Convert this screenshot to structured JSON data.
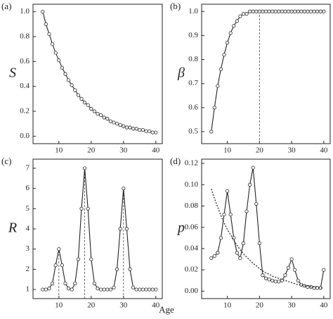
{
  "x_label": "Age",
  "chart_data": [
    {
      "type": "line",
      "panel_label": "(a)",
      "ylabel": "S",
      "x": [
        5,
        6,
        7,
        8,
        9,
        10,
        11,
        12,
        13,
        14,
        15,
        16,
        17,
        18,
        19,
        20,
        21,
        22,
        23,
        24,
        25,
        26,
        27,
        28,
        29,
        30,
        31,
        32,
        33,
        34,
        35,
        36,
        37,
        38,
        39,
        40
      ],
      "series": [
        {
          "color": "#222222",
          "marker": "circle",
          "style": "solid",
          "values": [
            1.0,
            0.9,
            0.82,
            0.74,
            0.67,
            0.61,
            0.55,
            0.5,
            0.45,
            0.41,
            0.37,
            0.33,
            0.3,
            0.27,
            0.25,
            0.22,
            0.2,
            0.18,
            0.17,
            0.15,
            0.14,
            0.12,
            0.11,
            0.1,
            0.09,
            0.08,
            0.07,
            0.07,
            0.06,
            0.06,
            0.05,
            0.05,
            0.04,
            0.04,
            0.03,
            0.03
          ]
        }
      ],
      "xlim": [
        2,
        42
      ],
      "xticks": [
        10,
        20,
        30,
        40
      ],
      "ylim": [
        -0.06,
        1.06
      ],
      "yticks": [
        {
          "value": 0,
          "label": "0.0"
        },
        0.2,
        0.4,
        0.6,
        0.8,
        {
          "value": 1,
          "label": "1.0"
        }
      ],
      "vlines": []
    },
    {
      "type": "line",
      "panel_label": "(b)",
      "ylabel": "β",
      "x": [
        5,
        6,
        7,
        8,
        9,
        10,
        11,
        12,
        13,
        14,
        15,
        16,
        17,
        18,
        19,
        20,
        21,
        22,
        23,
        24,
        25,
        26,
        27,
        28,
        29,
        30,
        31,
        32,
        33,
        34,
        35,
        36,
        37,
        38,
        39,
        40
      ],
      "series": [
        {
          "color": "#222222",
          "marker": "circle",
          "style": "solid",
          "values": [
            0.5,
            0.6,
            0.69,
            0.76,
            0.82,
            0.87,
            0.91,
            0.94,
            0.96,
            0.98,
            0.99,
            0.99,
            1.0,
            1.0,
            1.0,
            1.0,
            1.0,
            1.0,
            1.0,
            1.0,
            1.0,
            1.0,
            1.0,
            1.0,
            1.0,
            1.0,
            1.0,
            1.0,
            1.0,
            1.0,
            1.0,
            1.0,
            1.0,
            1.0,
            1.0,
            1.0
          ]
        }
      ],
      "xlim": [
        2,
        42
      ],
      "xticks": [
        10,
        20,
        30,
        40
      ],
      "ylim": [
        0.45,
        1.03
      ],
      "yticks": [
        0.5,
        0.6,
        0.7,
        0.8,
        0.9,
        {
          "value": 1,
          "label": "1.0"
        }
      ],
      "vlines": [
        20
      ]
    },
    {
      "type": "line",
      "panel_label": "(c)",
      "ylabel": "R",
      "x": [
        5,
        6,
        7,
        8,
        9,
        10,
        11,
        12,
        13,
        14,
        15,
        16,
        17,
        18,
        19,
        20,
        21,
        22,
        23,
        24,
        25,
        26,
        27,
        28,
        29,
        30,
        31,
        32,
        33,
        34,
        35,
        36,
        37,
        38,
        39,
        40
      ],
      "series": [
        {
          "color": "#222222",
          "marker": "circle",
          "style": "solid",
          "values": [
            1,
            1,
            1.05,
            1.3,
            2.2,
            3,
            2.2,
            1.3,
            1.05,
            1,
            1.3,
            2.5,
            5,
            7,
            5,
            2.5,
            1.3,
            1.05,
            1,
            1,
            1,
            1,
            1.1,
            2,
            4,
            6,
            4,
            2,
            1.1,
            1,
            1,
            1,
            1,
            1,
            1,
            1
          ]
        }
      ],
      "xlim": [
        2,
        42
      ],
      "xticks": [
        10,
        20,
        30,
        40
      ],
      "ylim": [
        0.55,
        7.45
      ],
      "yticks": [
        1,
        2,
        3,
        4,
        5,
        6,
        7
      ],
      "vlines": [
        10,
        18,
        30
      ]
    },
    {
      "type": "line",
      "panel_label": "(d)",
      "ylabel": "p",
      "x": [
        5,
        6,
        7,
        8,
        9,
        10,
        11,
        12,
        13,
        14,
        15,
        16,
        17,
        18,
        19,
        20,
        21,
        22,
        23,
        24,
        25,
        26,
        27,
        28,
        29,
        30,
        31,
        32,
        33,
        34,
        35,
        36,
        37,
        38,
        39,
        40
      ],
      "series": [
        {
          "color": "#222222",
          "marker": "circle",
          "style": "solid",
          "values": [
            0.031,
            0.033,
            0.036,
            0.05,
            0.072,
            0.094,
            0.072,
            0.05,
            0.036,
            0.031,
            0.045,
            0.075,
            0.1,
            0.116,
            0.082,
            0.045,
            0.015,
            0.012,
            0.011,
            0.01,
            0.009,
            0.009,
            0.01,
            0.015,
            0.022,
            0.03,
            0.02,
            0.01,
            0.006,
            0.005,
            0.004,
            0.004,
            0.003,
            0.003,
            0.003,
            0.02
          ]
        },
        {
          "color": "#222222",
          "marker": "none",
          "style": "dotted",
          "values": [
            0.096,
            0.087,
            0.079,
            0.071,
            0.064,
            0.058,
            0.053,
            0.048,
            0.043,
            0.039,
            0.035,
            0.032,
            0.029,
            0.026,
            0.024,
            0.021,
            0.019,
            0.017,
            0.016,
            0.014,
            0.013,
            0.012,
            0.011,
            0.01,
            0.009,
            0.008,
            0.007,
            0.006,
            0.006,
            0.005,
            0.005,
            0.004,
            0.004,
            0.004,
            0.003,
            0.003
          ]
        }
      ],
      "xlim": [
        2,
        42
      ],
      "xticks": [
        10,
        20,
        30,
        40
      ],
      "ylim": [
        -0.007,
        0.124
      ],
      "yticks": [
        {
          "value": 0,
          "label": "0.00"
        },
        0.02,
        0.04,
        0.06,
        0.08,
        {
          "value": 0.1,
          "label": "0.10"
        },
        0.12
      ],
      "vlines": []
    }
  ]
}
